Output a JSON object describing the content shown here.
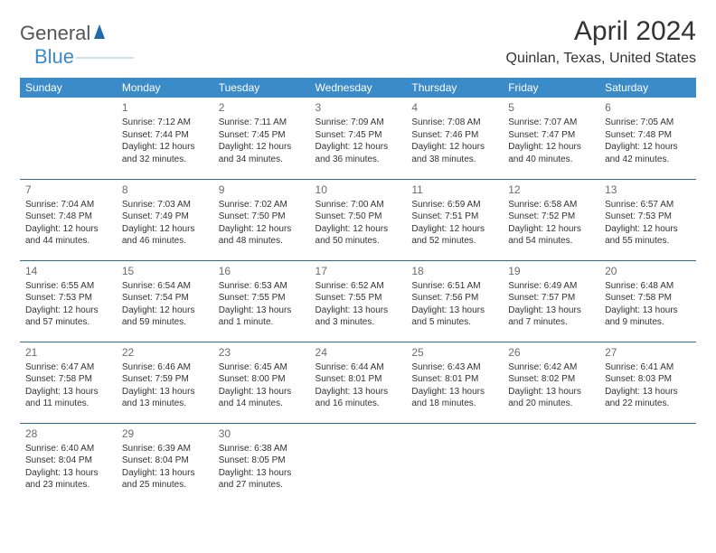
{
  "logo": {
    "part1": "General",
    "part2": "Blue"
  },
  "header": {
    "title": "April 2024",
    "location": "Quinlan, Texas, United States"
  },
  "weekdays": [
    "Sunday",
    "Monday",
    "Tuesday",
    "Wednesday",
    "Thursday",
    "Friday",
    "Saturday"
  ],
  "colors": {
    "header_bg": "#3b8bc9",
    "rule": "#2b6aa0",
    "text": "#333333"
  },
  "weeks": [
    [
      null,
      {
        "n": "1",
        "sr": "7:12 AM",
        "ss": "7:44 PM",
        "dl": "12 hours and 32 minutes."
      },
      {
        "n": "2",
        "sr": "7:11 AM",
        "ss": "7:45 PM",
        "dl": "12 hours and 34 minutes."
      },
      {
        "n": "3",
        "sr": "7:09 AM",
        "ss": "7:45 PM",
        "dl": "12 hours and 36 minutes."
      },
      {
        "n": "4",
        "sr": "7:08 AM",
        "ss": "7:46 PM",
        "dl": "12 hours and 38 minutes."
      },
      {
        "n": "5",
        "sr": "7:07 AM",
        "ss": "7:47 PM",
        "dl": "12 hours and 40 minutes."
      },
      {
        "n": "6",
        "sr": "7:05 AM",
        "ss": "7:48 PM",
        "dl": "12 hours and 42 minutes."
      }
    ],
    [
      {
        "n": "7",
        "sr": "7:04 AM",
        "ss": "7:48 PM",
        "dl": "12 hours and 44 minutes."
      },
      {
        "n": "8",
        "sr": "7:03 AM",
        "ss": "7:49 PM",
        "dl": "12 hours and 46 minutes."
      },
      {
        "n": "9",
        "sr": "7:02 AM",
        "ss": "7:50 PM",
        "dl": "12 hours and 48 minutes."
      },
      {
        "n": "10",
        "sr": "7:00 AM",
        "ss": "7:50 PM",
        "dl": "12 hours and 50 minutes."
      },
      {
        "n": "11",
        "sr": "6:59 AM",
        "ss": "7:51 PM",
        "dl": "12 hours and 52 minutes."
      },
      {
        "n": "12",
        "sr": "6:58 AM",
        "ss": "7:52 PM",
        "dl": "12 hours and 54 minutes."
      },
      {
        "n": "13",
        "sr": "6:57 AM",
        "ss": "7:53 PM",
        "dl": "12 hours and 55 minutes."
      }
    ],
    [
      {
        "n": "14",
        "sr": "6:55 AM",
        "ss": "7:53 PM",
        "dl": "12 hours and 57 minutes."
      },
      {
        "n": "15",
        "sr": "6:54 AM",
        "ss": "7:54 PM",
        "dl": "12 hours and 59 minutes."
      },
      {
        "n": "16",
        "sr": "6:53 AM",
        "ss": "7:55 PM",
        "dl": "13 hours and 1 minute."
      },
      {
        "n": "17",
        "sr": "6:52 AM",
        "ss": "7:55 PM",
        "dl": "13 hours and 3 minutes."
      },
      {
        "n": "18",
        "sr": "6:51 AM",
        "ss": "7:56 PM",
        "dl": "13 hours and 5 minutes."
      },
      {
        "n": "19",
        "sr": "6:49 AM",
        "ss": "7:57 PM",
        "dl": "13 hours and 7 minutes."
      },
      {
        "n": "20",
        "sr": "6:48 AM",
        "ss": "7:58 PM",
        "dl": "13 hours and 9 minutes."
      }
    ],
    [
      {
        "n": "21",
        "sr": "6:47 AM",
        "ss": "7:58 PM",
        "dl": "13 hours and 11 minutes."
      },
      {
        "n": "22",
        "sr": "6:46 AM",
        "ss": "7:59 PM",
        "dl": "13 hours and 13 minutes."
      },
      {
        "n": "23",
        "sr": "6:45 AM",
        "ss": "8:00 PM",
        "dl": "13 hours and 14 minutes."
      },
      {
        "n": "24",
        "sr": "6:44 AM",
        "ss": "8:01 PM",
        "dl": "13 hours and 16 minutes."
      },
      {
        "n": "25",
        "sr": "6:43 AM",
        "ss": "8:01 PM",
        "dl": "13 hours and 18 minutes."
      },
      {
        "n": "26",
        "sr": "6:42 AM",
        "ss": "8:02 PM",
        "dl": "13 hours and 20 minutes."
      },
      {
        "n": "27",
        "sr": "6:41 AM",
        "ss": "8:03 PM",
        "dl": "13 hours and 22 minutes."
      }
    ],
    [
      {
        "n": "28",
        "sr": "6:40 AM",
        "ss": "8:04 PM",
        "dl": "13 hours and 23 minutes."
      },
      {
        "n": "29",
        "sr": "6:39 AM",
        "ss": "8:04 PM",
        "dl": "13 hours and 25 minutes."
      },
      {
        "n": "30",
        "sr": "6:38 AM",
        "ss": "8:05 PM",
        "dl": "13 hours and 27 minutes."
      },
      null,
      null,
      null,
      null
    ]
  ],
  "labels": {
    "sunrise": "Sunrise: ",
    "sunset": "Sunset: ",
    "daylight": "Daylight: "
  }
}
